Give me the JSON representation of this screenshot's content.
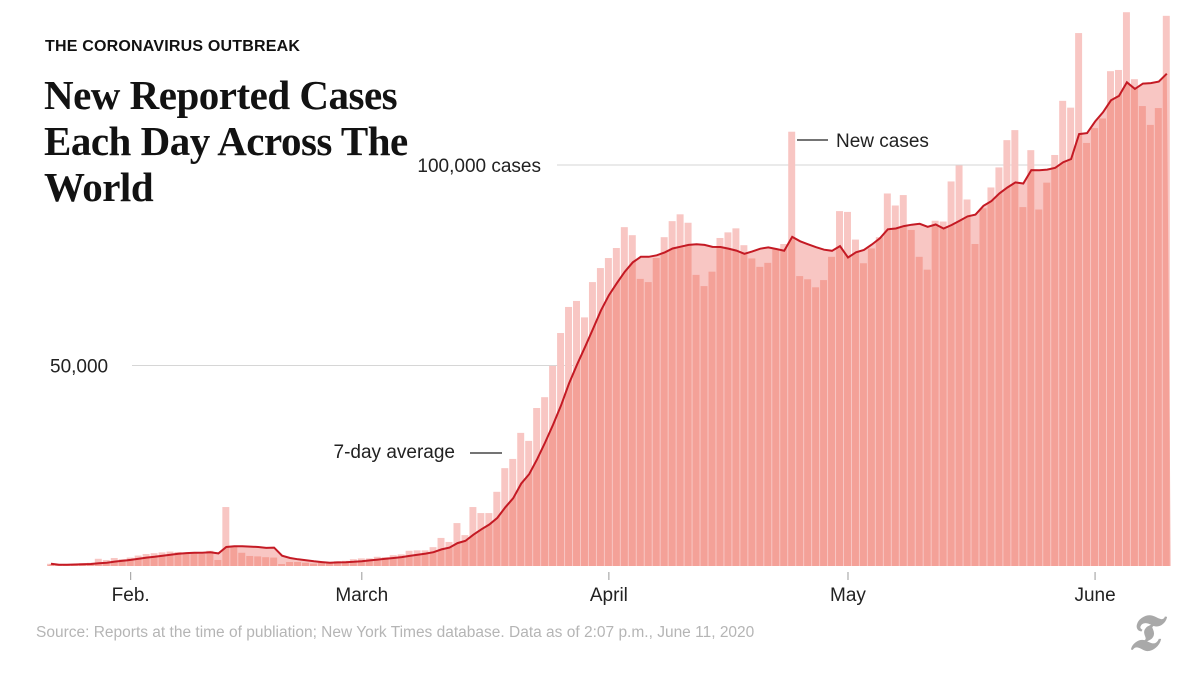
{
  "header": {
    "kicker": "THE CORONAVIRUS OUTBREAK",
    "title": "New Reported Cases Each Day Across The World"
  },
  "footer": {
    "source": "Source: Reports at the time of publiation; New York Times database. Data as of 2:07 p.m., June 11, 2020",
    "logo": "T"
  },
  "colors": {
    "bar_light": "#f8c6c3",
    "bar_dark": "#f4a198",
    "line": "#c41a24",
    "grid": "#d6d6d6"
  },
  "chart_data": {
    "type": "bar",
    "title": "New Reported Cases Each Day Across The World",
    "start_date": "2020-01-22",
    "end_date": "2020-06-10",
    "ylim": [
      0,
      137000
    ],
    "y_ticks": [
      {
        "value": 50000,
        "label": "50,000"
      },
      {
        "value": 100000,
        "label": "100,000 cases"
      }
    ],
    "x_ticks": [
      {
        "day_index": 10,
        "label": "Feb."
      },
      {
        "day_index": 39,
        "label": "March"
      },
      {
        "day_index": 70,
        "label": "April"
      },
      {
        "day_index": 100,
        "label": "May"
      },
      {
        "day_index": 131,
        "label": "June"
      }
    ],
    "annotations": {
      "new_cases": "New cases",
      "average": "7-day average"
    },
    "series": [
      {
        "name": "New cases",
        "values": [
          550,
          100,
          300,
          500,
          700,
          800,
          1800,
          1500,
          2000,
          1700,
          2100,
          2600,
          3000,
          3200,
          3400,
          3600,
          3500,
          3300,
          3300,
          3000,
          3800,
          1500,
          14700,
          5000,
          3300,
          2500,
          2400,
          2200,
          2100,
          500,
          1000,
          1000,
          800,
          600,
          800,
          900,
          1200,
          1300,
          1700,
          1900,
          1900,
          2300,
          2200,
          2700,
          2900,
          3800,
          3900,
          3900,
          4700,
          7000,
          6000,
          10700,
          7700,
          14700,
          13200,
          13200,
          18500,
          24400,
          26700,
          33200,
          31200,
          39400,
          42100,
          49900,
          58100,
          64600,
          66100,
          62000,
          70800,
          74300,
          76800,
          79300,
          84500,
          82500,
          71600,
          70800,
          76800,
          82000,
          86000,
          87700,
          85600,
          72600,
          69800,
          73400,
          81800,
          83200,
          84200,
          80000,
          76700,
          74600,
          75600,
          79000,
          80300,
          108300,
          72300,
          71500,
          69500,
          71300,
          77100,
          88500,
          88300,
          81400,
          75500,
          79200,
          82000,
          92900,
          89900,
          92500,
          83800,
          77100,
          73900,
          86100,
          85900,
          95900,
          99900,
          91400,
          80300,
          89200,
          94400,
          99400,
          106200,
          108700,
          89500,
          103700,
          88900,
          95600,
          102500,
          116000,
          114300,
          132900,
          105500,
          109200,
          111600,
          123400,
          123700,
          138100,
          121400,
          114700,
          110000,
          114200,
          137200
        ]
      },
      {
        "name": "7-day average",
        "values": "computed as trailing 7-day mean of New cases"
      }
    ]
  }
}
